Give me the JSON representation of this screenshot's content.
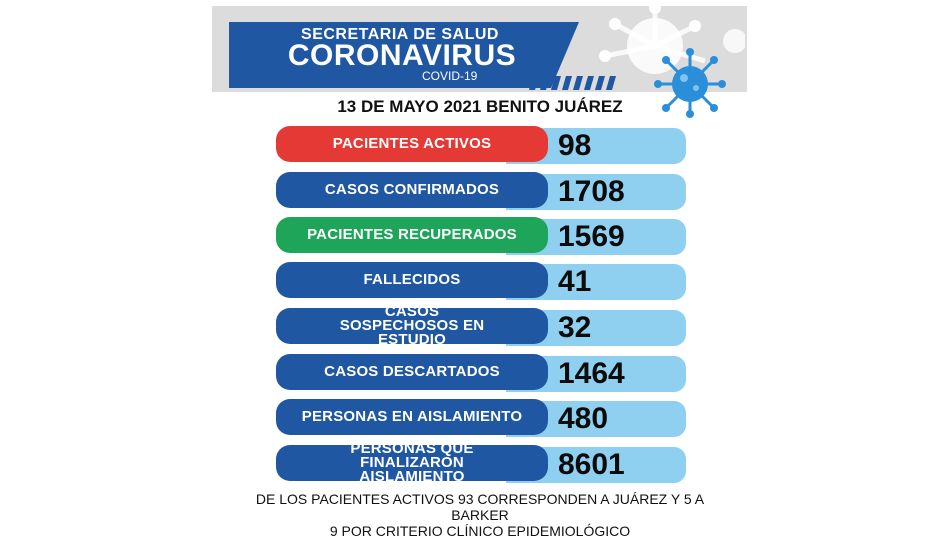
{
  "header": {
    "subtitle": "SECRETARIA DE SALUD",
    "title": "CORONAVIRUS",
    "tag": "COVID-19"
  },
  "date_line": "13 DE MAYO 2021 BENITO JUÁREZ",
  "stats": [
    {
      "label": "PACIENTES ACTIVOS",
      "value": "98",
      "color": "#e53935"
    },
    {
      "label": "CASOS CONFIRMADOS",
      "value": "1708",
      "color": "#1f57a3"
    },
    {
      "label": "PACIENTES RECUPERADOS",
      "value": "1569",
      "color": "#1fa55a"
    },
    {
      "label": "FALLECIDOS",
      "value": "41",
      "color": "#1f57a3"
    },
    {
      "label": "CASOS SOSPECHOSOS EN ESTUDIO",
      "value": "32",
      "color": "#1f57a3"
    },
    {
      "label": "CASOS DESCARTADOS",
      "value": "1464",
      "color": "#1f57a3"
    },
    {
      "label": "PERSONAS EN AISLAMIENTO",
      "value": "480",
      "color": "#1f57a3"
    },
    {
      "label": "PERSONAS QUE FINALIZARON AISLAMIENTO",
      "value": "8601",
      "color": "#1f57a3"
    }
  ],
  "footer": {
    "line1": "DE LOS PACIENTES ACTIVOS  93 CORRESPONDEN A JUÁREZ Y 5 A BARKER",
    "line2": "9 POR CRITERIO CLÍNICO EPIDEMIOLÓGICO"
  }
}
